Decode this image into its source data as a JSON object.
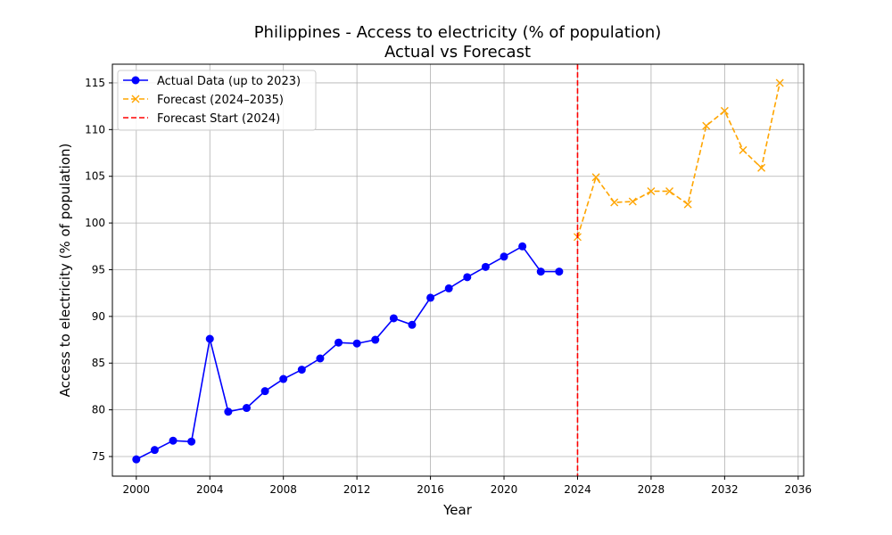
{
  "chart_data": {
    "type": "line",
    "title": "Philippines - Access to electricity (% of population)",
    "subtitle": "Actual vs Forecast",
    "xlabel": "Year",
    "ylabel": "Access to electricity (% of population)",
    "xlim": [
      1998.7,
      2036.3
    ],
    "ylim": [
      72.9,
      117.0
    ],
    "xticks": [
      2000,
      2004,
      2008,
      2012,
      2016,
      2020,
      2024,
      2028,
      2032,
      2036
    ],
    "yticks": [
      75,
      80,
      85,
      90,
      95,
      100,
      105,
      110,
      115
    ],
    "grid": true,
    "legend_position": "top-left",
    "series": [
      {
        "name": "Actual Data (up to 2023)",
        "color": "#0000ff",
        "marker": "circle",
        "linestyle": "solid",
        "x": [
          2000,
          2001,
          2002,
          2003,
          2004,
          2005,
          2006,
          2007,
          2008,
          2009,
          2010,
          2011,
          2012,
          2013,
          2014,
          2015,
          2016,
          2017,
          2018,
          2019,
          2020,
          2021,
          2022,
          2023
        ],
        "values": [
          74.7,
          75.7,
          76.7,
          76.6,
          87.6,
          79.8,
          80.2,
          82.0,
          83.3,
          84.3,
          85.5,
          87.2,
          87.1,
          87.5,
          89.8,
          89.1,
          92.0,
          93.0,
          94.2,
          95.3,
          96.4,
          97.5,
          94.8,
          94.8
        ]
      },
      {
        "name": "Forecast (2024–2035)",
        "color": "#ffa500",
        "marker": "x",
        "linestyle": "dashed",
        "x": [
          2024,
          2025,
          2026,
          2027,
          2028,
          2029,
          2030,
          2031,
          2032,
          2033,
          2034,
          2035
        ],
        "values": [
          98.5,
          104.9,
          102.2,
          102.3,
          103.4,
          103.4,
          102.0,
          110.4,
          112.0,
          107.8,
          105.9,
          115.0
        ]
      }
    ],
    "vline": {
      "name": "Forecast Start (2024)",
      "x": 2024,
      "color": "#ff0000",
      "linestyle": "dashed"
    }
  }
}
